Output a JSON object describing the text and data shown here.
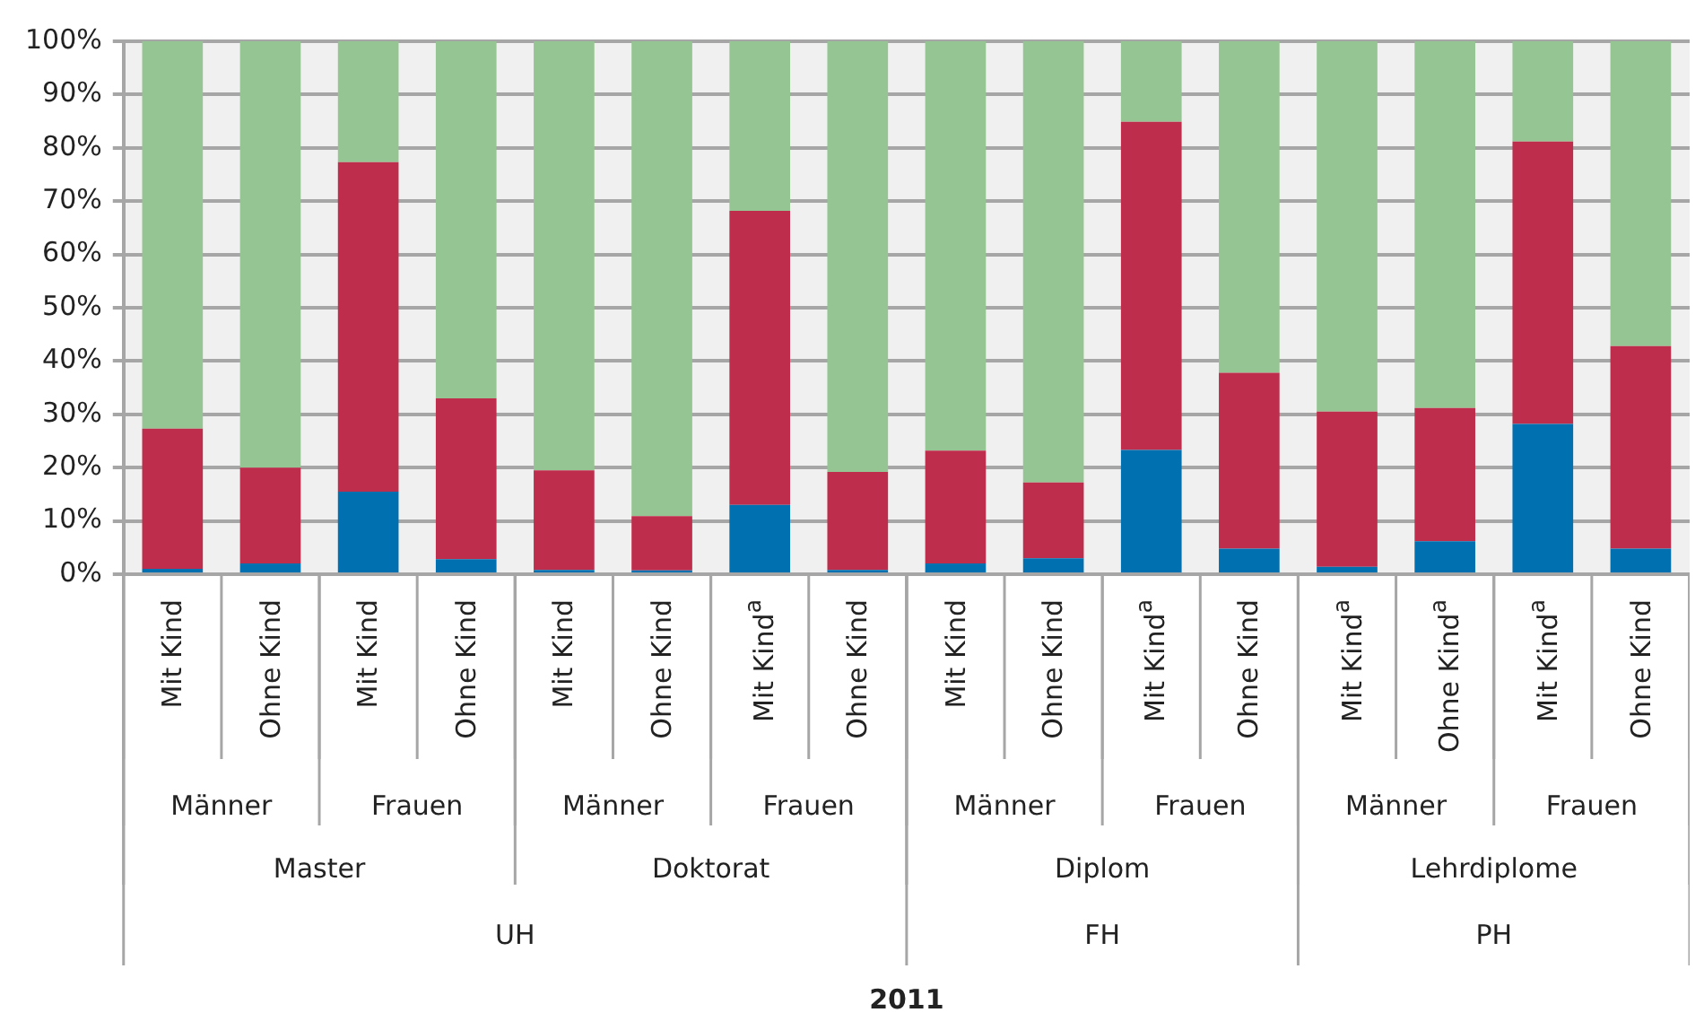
{
  "chart_data": {
    "type": "bar",
    "stacked": true,
    "categories": [
      "Mit Kind",
      "Ohne Kind",
      "Mit Kind",
      "Ohne Kind",
      "Mit Kind",
      "Ohne Kind",
      "Mit Kind$^{a}$",
      "Ohne Kind",
      "Mit Kind",
      "Ohne Kind",
      "Mit Kind$^{a}$",
      "Ohne Kind",
      "Mit Kind$^{a}$",
      "Ohne Kind$^{a}$",
      "Mit Kind$^{a}$",
      "Ohne Kind"
    ],
    "series": [
      {
        "color": "#0070b0",
        "values": [
          1,
          2,
          15.5,
          2.8,
          0.8,
          0.7,
          13,
          0.8,
          2,
          3,
          23.3,
          4.8,
          1.4,
          6.2,
          28.2,
          4.8
        ]
      },
      {
        "color": "#be2e4c",
        "values": [
          26.3,
          18,
          61.8,
          30.2,
          18.7,
          10.2,
          55.2,
          18.4,
          21.2,
          14.2,
          61.6,
          33,
          29.1,
          25,
          53,
          38
        ]
      },
      {
        "color": "#95c592",
        "values": [
          72.7,
          80,
          22.7,
          67,
          80.5,
          89.1,
          31.8,
          80.8,
          76.8,
          82.8,
          15.1,
          62.2,
          69.5,
          68.8,
          18.8,
          57.2
        ]
      }
    ],
    "ylim": [
      0,
      100
    ],
    "yticks": [
      {
        "value": 0,
        "label": "0%"
      },
      {
        "value": 10,
        "label": "10%"
      },
      {
        "value": 20,
        "label": "20%"
      },
      {
        "value": 30,
        "label": "30%"
      },
      {
        "value": 40,
        "label": "40%"
      },
      {
        "value": 50,
        "label": "50%"
      },
      {
        "value": 60,
        "label": "60%"
      },
      {
        "value": 70,
        "label": "70%"
      },
      {
        "value": 80,
        "label": "80%"
      },
      {
        "value": 90,
        "label": "90%"
      },
      {
        "value": 100,
        "label": "100%"
      }
    ],
    "grid": "y",
    "legend": false,
    "annotations": [
      "Männer",
      "Frauen",
      "Männer",
      "Frauen",
      "Männer",
      "Frauen",
      "Männer",
      "Frauen",
      "Master",
      "Doktorat",
      "Diplom",
      "Lehrdiplome",
      "UH",
      "FH",
      "PH",
      "2011"
    ]
  }
}
